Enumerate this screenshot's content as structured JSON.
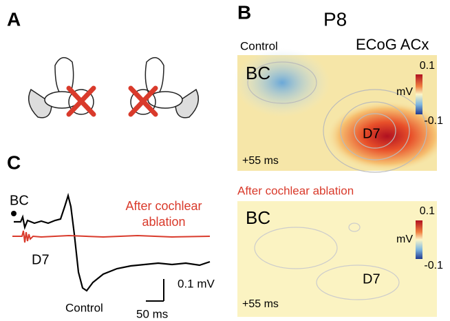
{
  "panels": {
    "a": {
      "label": "A"
    },
    "b": {
      "label": "B",
      "title": "P8",
      "method": "ECoG ACx",
      "maps": [
        {
          "condition": "Control",
          "site1": "BC",
          "site2": "D7",
          "time": "+55 ms",
          "colorbar": {
            "max": "0.1",
            "unit": "mV",
            "min": "-0.1"
          }
        },
        {
          "condition": "After cochlear ablation",
          "site1": "BC",
          "site2": "D7",
          "time": "+55 ms",
          "colorbar": {
            "max": "0.1",
            "unit": "mV",
            "min": "-0.1"
          }
        }
      ]
    },
    "c": {
      "label": "C",
      "site1": "BC",
      "site2": "D7",
      "after_line1": "After cochlear",
      "after_line2": "ablation",
      "control": "Control",
      "scale_v": "0.1 mV",
      "scale_t": "50 ms"
    }
  }
}
